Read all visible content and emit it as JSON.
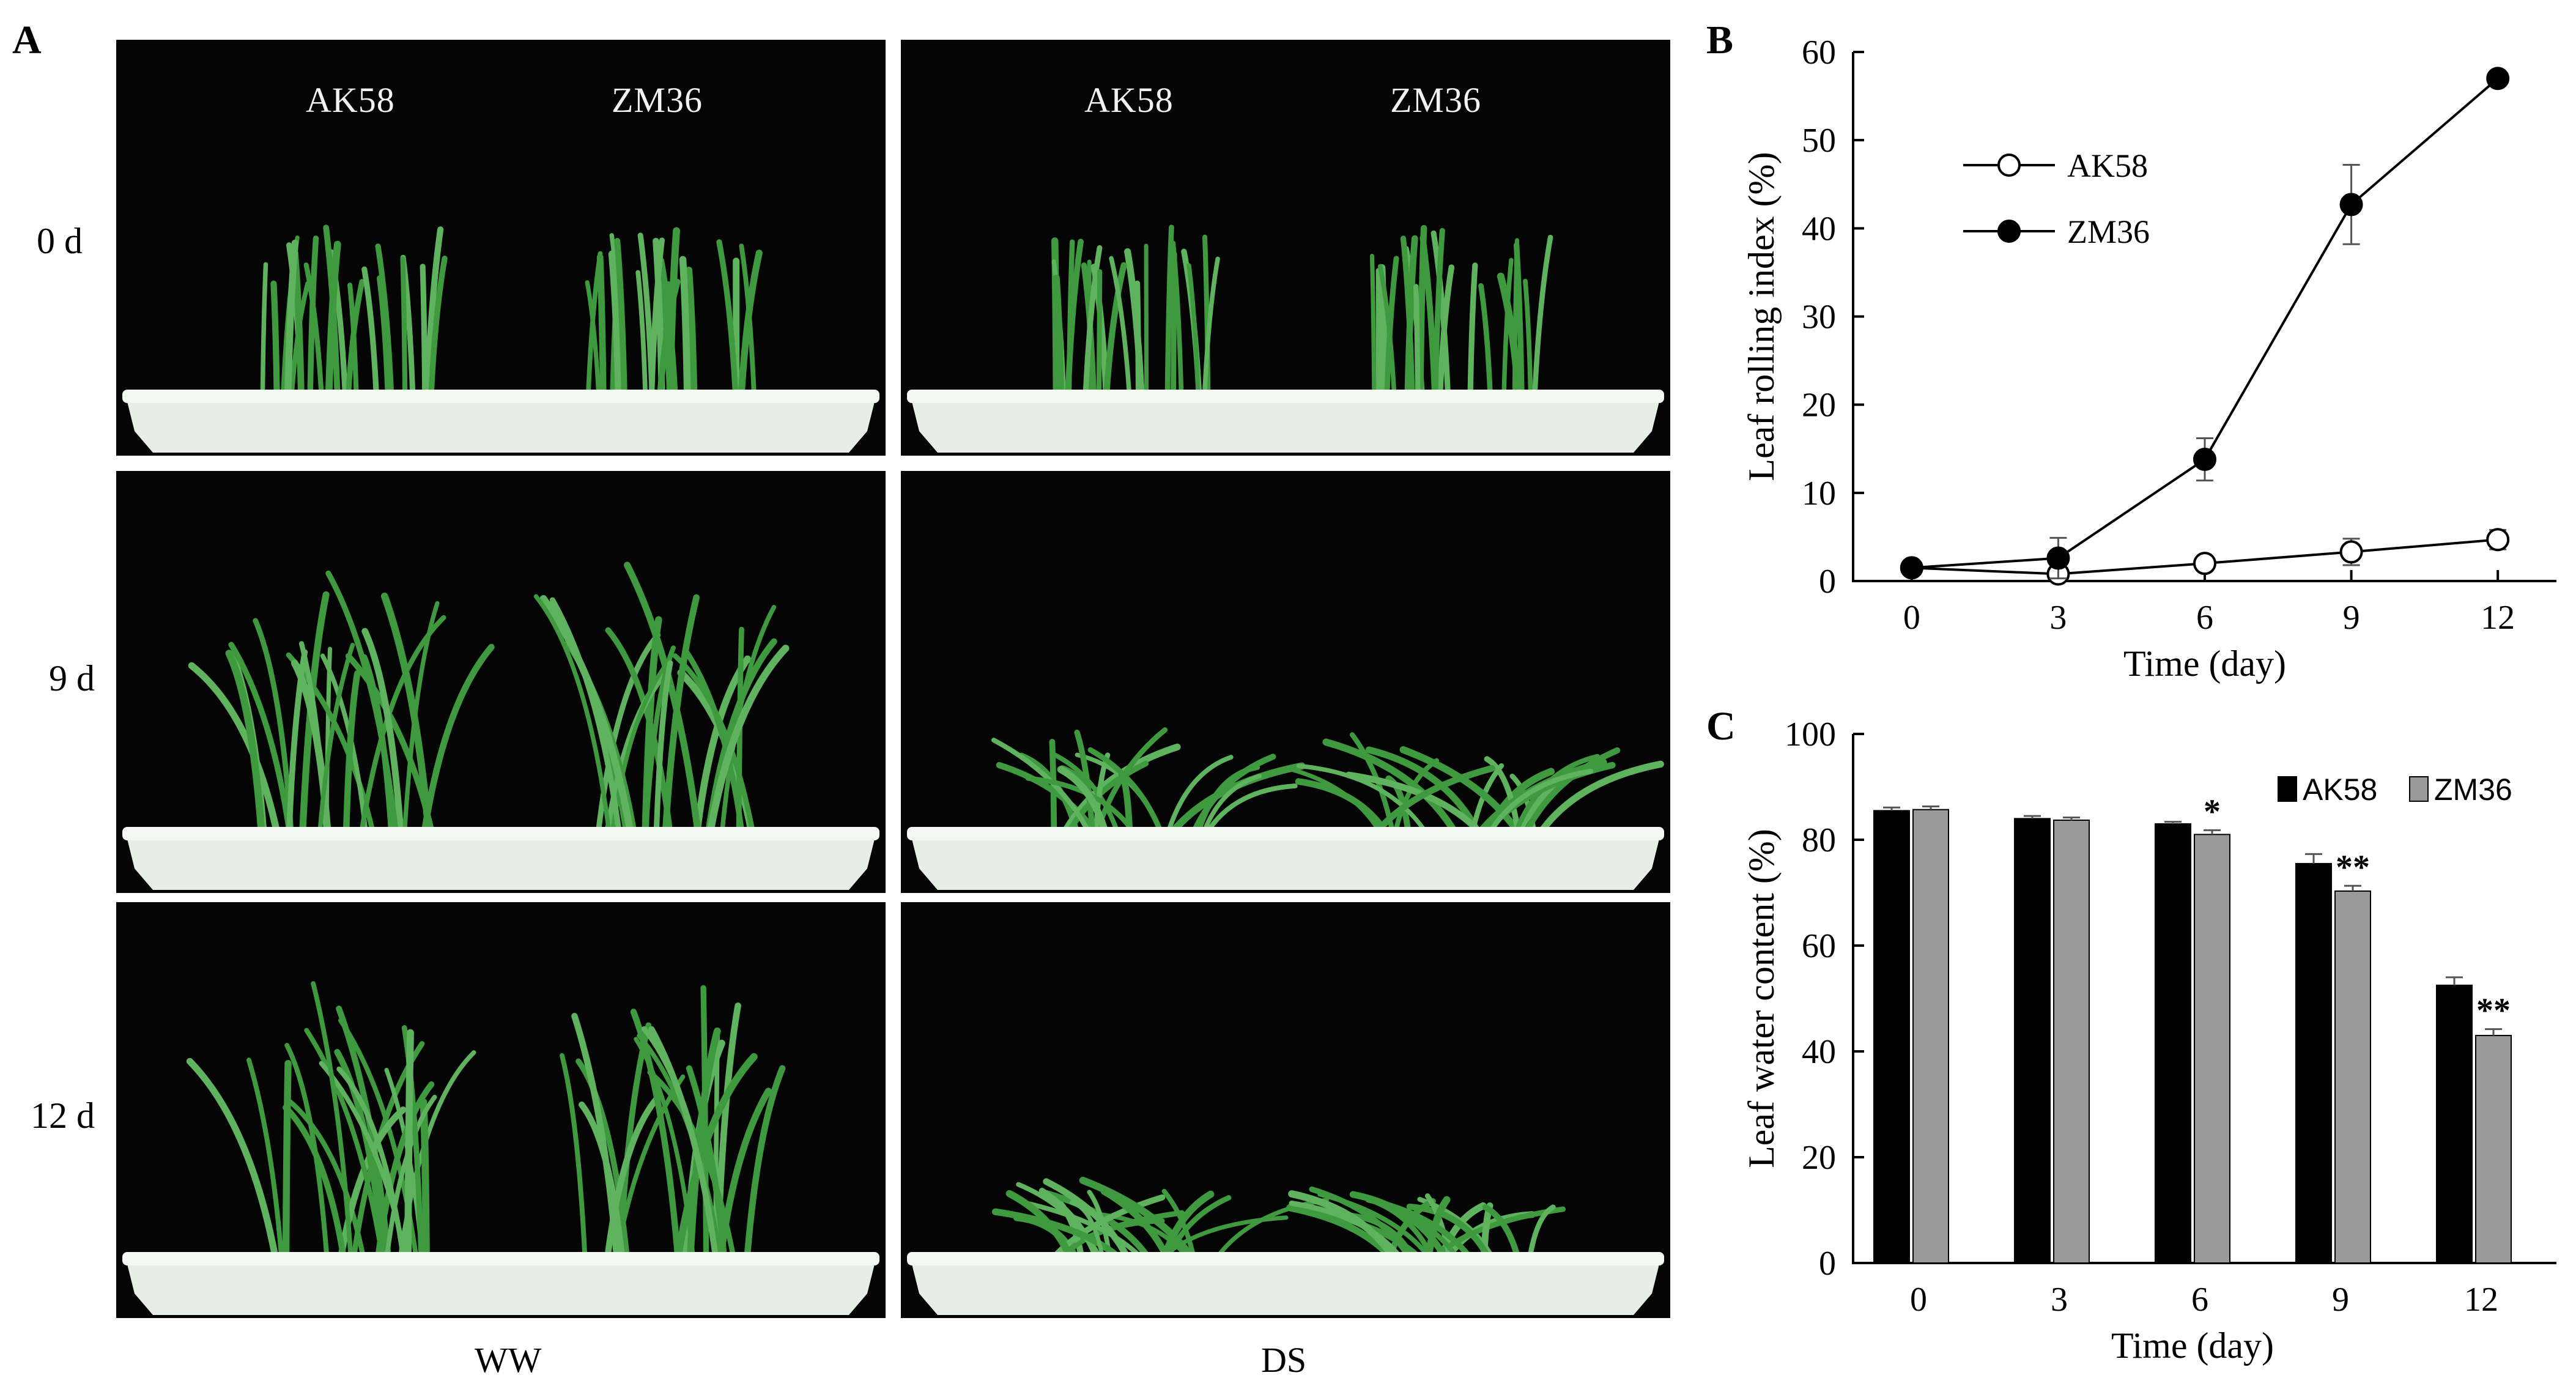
{
  "panel_a": {
    "letter": "A",
    "column_labels": [
      "WW",
      "DS"
    ],
    "row_labels": [
      "0 d",
      "9 d",
      "12 d"
    ],
    "photo_labels": [
      "AK58",
      "ZM36"
    ],
    "colors": {
      "background": "#050505",
      "leaf": "#3f9a3f",
      "tray": "#e6efe6"
    }
  },
  "panel_b": {
    "letter": "B",
    "legend": [
      "AK58",
      "ZM36"
    ]
  },
  "panel_c": {
    "letter": "C",
    "legend": [
      "AK58",
      "ZM36"
    ]
  },
  "chart_data": [
    {
      "id": "B",
      "type": "line",
      "title": "",
      "xlabel": "Time (day)",
      "ylabel": "Leaf rolling index (%)",
      "x": [
        0,
        3,
        6,
        9,
        12
      ],
      "xticks": [
        "0",
        "3",
        "6",
        "9",
        "12"
      ],
      "xlim": [
        -1.2,
        13.2
      ],
      "ylim": [
        0,
        60
      ],
      "yticks": [
        "0",
        "10",
        "20",
        "30",
        "40",
        "50",
        "60"
      ],
      "legend_position": "top-left",
      "series": [
        {
          "name": "AK58",
          "marker": "open-circle",
          "values": [
            1.5,
            0.8,
            2.0,
            3.3,
            4.7
          ],
          "errors": [
            0.3,
            0.3,
            0.5,
            1.5,
            1.1
          ]
        },
        {
          "name": "ZM36",
          "marker": "filled-circle",
          "values": [
            1.5,
            2.6,
            13.8,
            42.7,
            57.0
          ],
          "errors": [
            0.3,
            2.3,
            2.4,
            4.5,
            0.7
          ]
        }
      ]
    },
    {
      "id": "C",
      "type": "bar",
      "title": "",
      "xlabel": "Time (day)",
      "ylabel": "Leaf water content (%)",
      "categories": [
        "0",
        "3",
        "6",
        "9",
        "12"
      ],
      "ylim": [
        0,
        100
      ],
      "yticks": [
        "0",
        "20",
        "40",
        "60",
        "80",
        "100"
      ],
      "legend_position": "top-right",
      "series": [
        {
          "name": "AK58",
          "color": "#000000",
          "values": [
            85.5,
            84.0,
            83.0,
            75.5,
            52.5
          ],
          "errors": [
            0.6,
            0.5,
            0.4,
            1.8,
            1.5
          ],
          "significance": [
            "",
            "",
            "",
            "",
            ""
          ]
        },
        {
          "name": "ZM36",
          "color": "#9a9a9a",
          "values": [
            85.7,
            83.7,
            81.0,
            70.3,
            43.0
          ],
          "errors": [
            0.6,
            0.5,
            0.8,
            1.0,
            1.2
          ],
          "significance": [
            "",
            "",
            "*",
            "**",
            "**"
          ]
        }
      ]
    }
  ]
}
